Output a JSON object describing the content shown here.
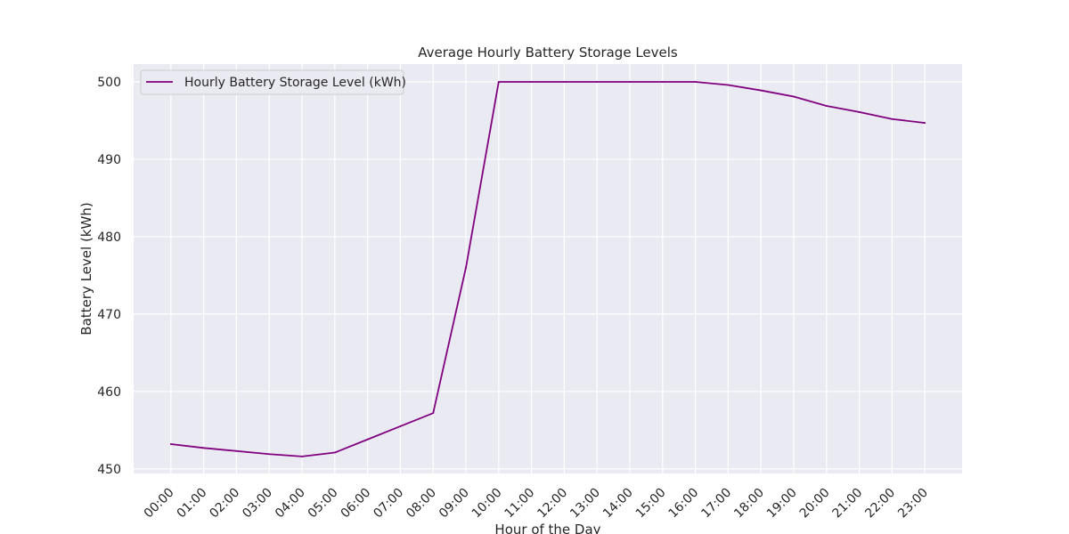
{
  "chart_data": {
    "type": "line",
    "title": "Average Hourly Battery Storage Levels",
    "xlabel": "Hour of the Day",
    "ylabel": "Battery Level (kWh)",
    "categories": [
      "00:00",
      "01:00",
      "02:00",
      "03:00",
      "04:00",
      "05:00",
      "06:00",
      "07:00",
      "08:00",
      "09:00",
      "10:00",
      "11:00",
      "12:00",
      "13:00",
      "14:00",
      "15:00",
      "16:00",
      "17:00",
      "18:00",
      "19:00",
      "20:00",
      "21:00",
      "22:00",
      "23:00"
    ],
    "series": [
      {
        "name": "Hourly Battery Storage Level (kWh)",
        "color": "#800080",
        "values": [
          453.2,
          452.7,
          452.3,
          451.9,
          451.6,
          452.1,
          453.8,
          455.5,
          457.2,
          476.0,
          500.0,
          500.0,
          500.0,
          500.0,
          500.0,
          500.0,
          500.0,
          499.6,
          498.9,
          498.1,
          496.9,
          496.1,
          495.2,
          494.7
        ]
      }
    ],
    "yticks": [
      450,
      460,
      470,
      480,
      490,
      500
    ],
    "ylim": [
      449.4,
      502.3
    ],
    "grid": true,
    "legend_position": "upper-left",
    "plot_background": "#EAEAF2",
    "grid_color": "#ffffff"
  }
}
